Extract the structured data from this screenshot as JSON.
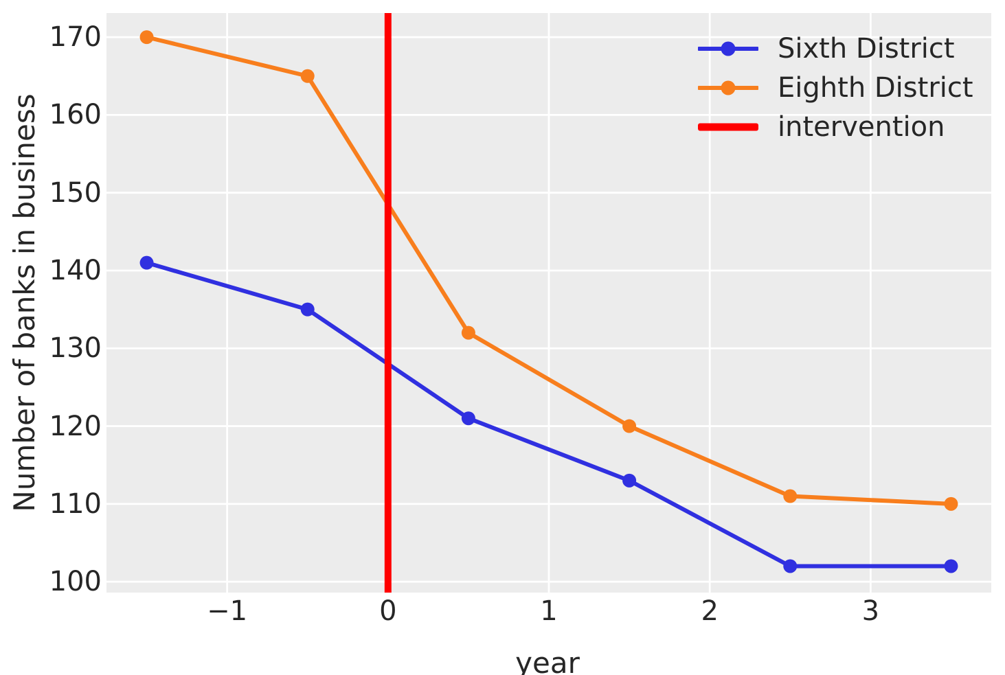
{
  "figure": {
    "background": "#ffffff",
    "plot_background": "#ececec",
    "grid_color": "#ffffff",
    "text_color": "#262626"
  },
  "chart_data": {
    "type": "line",
    "title": "",
    "xlabel": "year",
    "ylabel": "Number of banks in business",
    "x": [
      -1.5,
      -0.5,
      0.5,
      1.5,
      2.5,
      3.5
    ],
    "series": [
      {
        "name": "Sixth District",
        "color": "#3030e0",
        "values": [
          141,
          135,
          121,
          113,
          102,
          102
        ]
      },
      {
        "name": "Eighth District",
        "color": "#f87e1d",
        "values": [
          170,
          165,
          132,
          120,
          111,
          110
        ]
      }
    ],
    "intervention": {
      "x": 0,
      "color": "#ff0000",
      "label": "intervention"
    },
    "xlim": [
      -1.75,
      3.75
    ],
    "ylim": [
      98.6,
      173.1
    ],
    "x_ticks": [
      -1,
      0,
      1,
      2,
      3
    ],
    "x_tick_labels": [
      "−1",
      "0",
      "1",
      "2",
      "3"
    ],
    "y_ticks": [
      100,
      110,
      120,
      130,
      140,
      150,
      160,
      170
    ],
    "y_tick_labels": [
      "100",
      "110",
      "120",
      "130",
      "140",
      "150",
      "160",
      "170"
    ],
    "grid": true,
    "legend_position": "upper right",
    "legend": [
      {
        "label": "Sixth District",
        "style": "line-marker",
        "color": "#3030e0"
      },
      {
        "label": "Eighth District",
        "style": "line-marker",
        "color": "#f87e1d"
      },
      {
        "label": "intervention",
        "style": "thick-line",
        "color": "#ff0000"
      }
    ]
  }
}
